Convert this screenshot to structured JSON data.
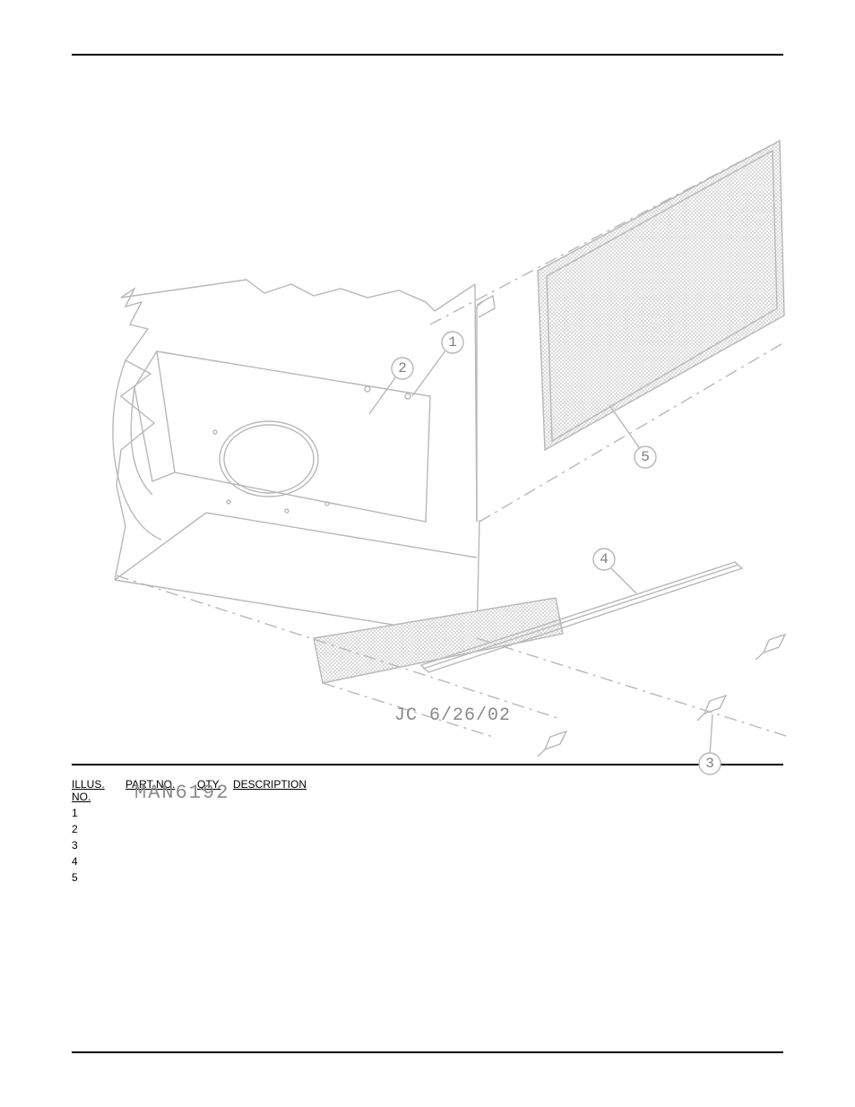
{
  "diagram": {
    "jc_label": "JC 6/26/02",
    "man_label": "MAN6192",
    "callouts": [
      "1",
      "2",
      "3",
      "4",
      "5"
    ]
  },
  "table": {
    "headers": {
      "illus": "ILLUS. NO.",
      "part": "PART NO.",
      "qty": "QTY.",
      "desc": "DESCRIPTION"
    },
    "rows": [
      {
        "illus": "1",
        "part": "",
        "qty": "",
        "desc": ""
      },
      {
        "illus": "2",
        "part": "",
        "qty": "",
        "desc": ""
      },
      {
        "illus": "3",
        "part": "",
        "qty": "",
        "desc": ""
      },
      {
        "illus": "4",
        "part": "",
        "qty": "",
        "desc": ""
      },
      {
        "illus": "5",
        "part": "",
        "qty": "",
        "desc": ""
      }
    ]
  },
  "page_number": ""
}
